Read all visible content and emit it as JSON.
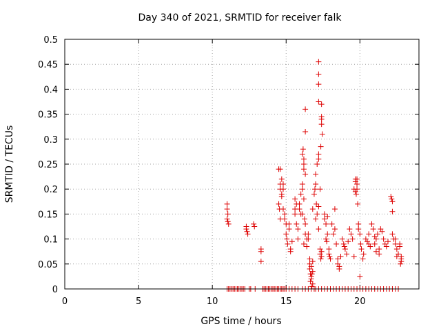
{
  "chart_data": {
    "type": "scatter",
    "title": "Day 340 of 2021, SRMTID for receiver falk",
    "xlabel": "GPS time / hours",
    "ylabel": "SRMTID / TECUs",
    "xlim": [
      0,
      24
    ],
    "ylim": [
      0,
      0.5
    ],
    "xticks": [
      "0",
      "5",
      "10",
      "15",
      "20"
    ],
    "xtick_values": [
      0,
      5,
      10,
      15,
      20
    ],
    "yticks": [
      "0",
      "0.05",
      "0.1",
      "0.15",
      "0.2",
      "0.25",
      "0.3",
      "0.35",
      "0.4",
      "0.45",
      "0.5"
    ],
    "ytick_values": [
      0,
      0.05,
      0.1,
      0.15,
      0.2,
      0.25,
      0.3,
      0.35,
      0.4,
      0.45,
      0.5
    ],
    "grid": true,
    "marker": "+",
    "series": [
      {
        "name": "SRMTID",
        "color": "#dd0000",
        "points": [
          [
            11.0,
            0.17
          ],
          [
            11.0,
            0.16
          ],
          [
            11.05,
            0.15
          ],
          [
            11.05,
            0.135
          ],
          [
            11.1,
            0.13
          ],
          [
            11.0,
            0.14
          ],
          [
            11.0,
            0.0
          ],
          [
            11.1,
            0.0
          ],
          [
            11.2,
            0.0
          ],
          [
            11.3,
            0.0
          ],
          [
            11.4,
            0.0
          ],
          [
            11.5,
            0.0
          ],
          [
            11.6,
            0.0
          ],
          [
            11.7,
            0.0
          ],
          [
            11.8,
            0.0
          ],
          [
            11.9,
            0.0
          ],
          [
            12.0,
            0.0
          ],
          [
            12.1,
            0.0
          ],
          [
            12.2,
            0.0
          ],
          [
            12.3,
            0.125
          ],
          [
            12.3,
            0.12
          ],
          [
            12.35,
            0.115
          ],
          [
            12.4,
            0.11
          ],
          [
            12.5,
            0.0
          ],
          [
            12.6,
            0.0
          ],
          [
            12.8,
            0.13
          ],
          [
            12.85,
            0.125
          ],
          [
            12.9,
            0.0
          ],
          [
            13.3,
            0.08
          ],
          [
            13.3,
            0.075
          ],
          [
            13.3,
            0.055
          ],
          [
            13.4,
            0.0
          ],
          [
            13.5,
            0.0
          ],
          [
            13.6,
            0.0
          ],
          [
            13.7,
            0.0
          ],
          [
            13.8,
            0.0
          ],
          [
            13.9,
            0.0
          ],
          [
            14.0,
            0.0
          ],
          [
            14.1,
            0.0
          ],
          [
            14.2,
            0.0
          ],
          [
            14.3,
            0.0
          ],
          [
            14.4,
            0.0
          ],
          [
            14.5,
            0.24
          ],
          [
            14.6,
            0.24
          ],
          [
            14.6,
            0.21
          ],
          [
            14.7,
            0.22
          ],
          [
            14.6,
            0.2
          ],
          [
            14.5,
            0.17
          ],
          [
            14.55,
            0.16
          ],
          [
            14.6,
            0.14
          ],
          [
            14.7,
            0.19
          ],
          [
            14.8,
            0.2
          ],
          [
            14.8,
            0.21
          ],
          [
            14.7,
            0.185
          ],
          [
            14.8,
            0.16
          ],
          [
            14.9,
            0.15
          ],
          [
            14.9,
            0.14
          ],
          [
            15.0,
            0.13
          ],
          [
            15.0,
            0.11
          ],
          [
            15.05,
            0.1
          ],
          [
            15.1,
            0.09
          ],
          [
            15.2,
            0.12
          ],
          [
            15.3,
            0.08
          ],
          [
            15.3,
            0.075
          ],
          [
            15.2,
            0.13
          ],
          [
            15.4,
            0.095
          ],
          [
            14.5,
            0.0
          ],
          [
            14.6,
            0.0
          ],
          [
            14.7,
            0.0
          ],
          [
            14.8,
            0.0
          ],
          [
            14.9,
            0.0
          ],
          [
            15.0,
            0.0
          ],
          [
            15.2,
            0.0
          ],
          [
            15.4,
            0.0
          ],
          [
            15.6,
            0.0
          ],
          [
            15.8,
            0.0
          ],
          [
            15.6,
            0.15
          ],
          [
            15.6,
            0.16
          ],
          [
            15.7,
            0.17
          ],
          [
            15.6,
            0.18
          ],
          [
            15.7,
            0.13
          ],
          [
            15.8,
            0.12
          ],
          [
            15.8,
            0.1
          ],
          [
            15.9,
            0.16
          ],
          [
            16.0,
            0.15
          ],
          [
            15.9,
            0.17
          ],
          [
            16.0,
            0.19
          ],
          [
            16.1,
            0.21
          ],
          [
            16.1,
            0.27
          ],
          [
            16.15,
            0.28
          ],
          [
            16.2,
            0.26
          ],
          [
            16.2,
            0.25
          ],
          [
            16.1,
            0.2
          ],
          [
            16.2,
            0.24
          ],
          [
            16.3,
            0.36
          ],
          [
            16.3,
            0.315
          ],
          [
            16.3,
            0.23
          ],
          [
            16.2,
            0.18
          ],
          [
            16.1,
            0.15
          ],
          [
            16.25,
            0.14
          ],
          [
            16.3,
            0.11
          ],
          [
            16.2,
            0.09
          ],
          [
            16.4,
            0.1
          ],
          [
            16.4,
            0.085
          ],
          [
            16.5,
            0.1
          ],
          [
            16.5,
            0.11
          ],
          [
            16.3,
            0.13
          ],
          [
            16.6,
            0.06
          ],
          [
            16.6,
            0.05
          ],
          [
            16.6,
            0.04
          ],
          [
            16.65,
            0.03
          ],
          [
            16.7,
            0.025
          ],
          [
            16.7,
            0.02
          ],
          [
            16.75,
            0.03
          ],
          [
            16.7,
            0.045
          ],
          [
            16.65,
            0.015
          ],
          [
            16.8,
            0.01
          ],
          [
            16.75,
            0.005
          ],
          [
            16.8,
            0.035
          ],
          [
            16.8,
            0.055
          ],
          [
            16.1,
            0.0
          ],
          [
            16.3,
            0.0
          ],
          [
            16.5,
            0.0
          ],
          [
            16.7,
            0.0
          ],
          [
            16.9,
            0.0
          ],
          [
            17.0,
            0.0
          ],
          [
            16.8,
            0.16
          ],
          [
            16.9,
            0.19
          ],
          [
            16.95,
            0.2
          ],
          [
            17.0,
            0.23
          ],
          [
            17.1,
            0.25
          ],
          [
            17.0,
            0.21
          ],
          [
            17.05,
            0.17
          ],
          [
            17.0,
            0.14
          ],
          [
            17.1,
            0.15
          ],
          [
            17.2,
            0.165
          ],
          [
            17.2,
            0.12
          ],
          [
            17.2,
            0.455
          ],
          [
            17.2,
            0.43
          ],
          [
            17.2,
            0.41
          ],
          [
            17.2,
            0.375
          ],
          [
            17.4,
            0.37
          ],
          [
            17.4,
            0.345
          ],
          [
            17.4,
            0.34
          ],
          [
            17.4,
            0.33
          ],
          [
            17.45,
            0.31
          ],
          [
            17.35,
            0.285
          ],
          [
            17.2,
            0.27
          ],
          [
            17.2,
            0.26
          ],
          [
            17.3,
            0.2
          ],
          [
            17.3,
            0.08
          ],
          [
            17.3,
            0.07
          ],
          [
            17.4,
            0.065
          ],
          [
            17.4,
            0.075
          ],
          [
            17.35,
            0.06
          ],
          [
            17.6,
            0.15
          ],
          [
            17.6,
            0.14
          ],
          [
            17.7,
            0.13
          ],
          [
            17.8,
            0.145
          ],
          [
            17.8,
            0.11
          ],
          [
            17.7,
            0.1
          ],
          [
            17.75,
            0.095
          ],
          [
            17.9,
            0.08
          ],
          [
            17.9,
            0.07
          ],
          [
            17.95,
            0.065
          ],
          [
            18.0,
            0.06
          ],
          [
            18.1,
            0.13
          ],
          [
            18.2,
            0.11
          ],
          [
            18.3,
            0.12
          ],
          [
            18.3,
            0.16
          ],
          [
            17.2,
            0.0
          ],
          [
            17.4,
            0.0
          ],
          [
            17.6,
            0.0
          ],
          [
            17.8,
            0.0
          ],
          [
            18.0,
            0.0
          ],
          [
            18.2,
            0.0
          ],
          [
            18.4,
            0.0
          ],
          [
            18.4,
            0.09
          ],
          [
            18.5,
            0.06
          ],
          [
            18.5,
            0.05
          ],
          [
            18.6,
            0.045
          ],
          [
            18.6,
            0.04
          ],
          [
            18.7,
            0.065
          ],
          [
            18.8,
            0.1
          ],
          [
            18.9,
            0.09
          ],
          [
            18.95,
            0.085
          ],
          [
            19.0,
            0.08
          ],
          [
            19.1,
            0.07
          ],
          [
            19.2,
            0.095
          ],
          [
            19.3,
            0.12
          ],
          [
            19.4,
            0.11
          ],
          [
            19.5,
            0.1
          ],
          [
            19.6,
            0.065
          ],
          [
            18.6,
            0.0
          ],
          [
            18.8,
            0.0
          ],
          [
            19.0,
            0.0
          ],
          [
            19.2,
            0.0
          ],
          [
            19.4,
            0.0
          ],
          [
            19.6,
            0.0
          ],
          [
            19.6,
            0.2
          ],
          [
            19.7,
            0.22
          ],
          [
            19.7,
            0.215
          ],
          [
            19.7,
            0.195
          ],
          [
            19.8,
            0.22
          ],
          [
            19.8,
            0.21
          ],
          [
            19.8,
            0.2
          ],
          [
            19.75,
            0.19
          ],
          [
            19.85,
            0.17
          ],
          [
            19.9,
            0.13
          ],
          [
            19.9,
            0.12
          ],
          [
            20.0,
            0.11
          ],
          [
            20.0,
            0.025
          ],
          [
            20.05,
            0.09
          ],
          [
            20.1,
            0.08
          ],
          [
            20.2,
            0.06
          ],
          [
            20.25,
            0.07
          ],
          [
            19.8,
            0.0
          ],
          [
            20.0,
            0.0
          ],
          [
            20.2,
            0.0
          ],
          [
            20.4,
            0.0
          ],
          [
            20.6,
            0.0
          ],
          [
            20.8,
            0.0
          ],
          [
            20.4,
            0.1
          ],
          [
            20.5,
            0.095
          ],
          [
            20.6,
            0.11
          ],
          [
            20.6,
            0.09
          ],
          [
            20.7,
            0.085
          ],
          [
            20.8,
            0.13
          ],
          [
            20.9,
            0.12
          ],
          [
            21.0,
            0.105
          ],
          [
            21.0,
            0.09
          ],
          [
            21.1,
            0.075
          ],
          [
            21.1,
            0.1
          ],
          [
            21.2,
            0.11
          ],
          [
            21.3,
            0.07
          ],
          [
            21.3,
            0.08
          ],
          [
            21.4,
            0.12
          ],
          [
            21.5,
            0.115
          ],
          [
            21.6,
            0.1
          ],
          [
            21.7,
            0.09
          ],
          [
            21.8,
            0.085
          ],
          [
            21.9,
            0.095
          ],
          [
            21.0,
            0.0
          ],
          [
            21.2,
            0.0
          ],
          [
            21.4,
            0.0
          ],
          [
            21.6,
            0.0
          ],
          [
            21.8,
            0.0
          ],
          [
            22.0,
            0.0
          ],
          [
            22.1,
            0.185
          ],
          [
            22.15,
            0.18
          ],
          [
            22.2,
            0.175
          ],
          [
            22.2,
            0.155
          ],
          [
            22.2,
            0.11
          ],
          [
            22.3,
            0.1
          ],
          [
            22.4,
            0.09
          ],
          [
            22.5,
            0.08
          ],
          [
            22.4,
            0.1
          ],
          [
            22.5,
            0.065
          ],
          [
            22.6,
            0.07
          ],
          [
            22.7,
            0.085
          ],
          [
            22.7,
            0.09
          ],
          [
            22.8,
            0.065
          ],
          [
            22.8,
            0.06
          ],
          [
            22.8,
            0.055
          ],
          [
            22.75,
            0.05
          ],
          [
            22.2,
            0.0
          ],
          [
            22.4,
            0.0
          ],
          [
            22.6,
            0.0
          ]
        ]
      }
    ]
  }
}
